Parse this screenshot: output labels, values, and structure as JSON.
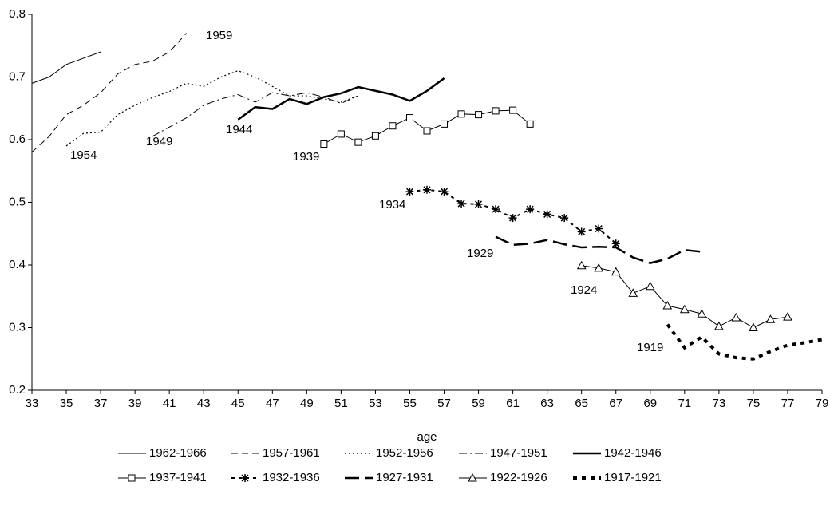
{
  "chart_data": {
    "type": "line",
    "xlabel": "age",
    "xlim": [
      33,
      79
    ],
    "xticks": [
      33,
      35,
      37,
      39,
      41,
      43,
      45,
      47,
      49,
      51,
      53,
      55,
      57,
      59,
      61,
      63,
      65,
      67,
      69,
      71,
      73,
      75,
      77,
      79
    ],
    "ylim": [
      0.2,
      0.8
    ],
    "yticks": [
      0.2,
      0.3,
      0.4,
      0.5,
      0.6,
      0.7,
      0.8
    ],
    "grid": false,
    "legend": "bottom",
    "series": [
      {
        "name": "1962-1966",
        "color": "#000000",
        "x": [
          33,
          34,
          35,
          36,
          37
        ],
        "values": [
          0.69,
          0.7,
          0.72,
          0.73,
          0.74
        ]
      },
      {
        "name": "1957-1961",
        "color": "#000000",
        "label": "1959",
        "x": [
          33,
          34,
          35,
          36,
          37,
          38,
          39,
          40,
          41,
          42
        ],
        "values": [
          0.58,
          0.605,
          0.64,
          0.655,
          0.675,
          0.705,
          0.72,
          0.725,
          0.74,
          0.77
        ]
      },
      {
        "name": "1952-1956",
        "color": "#000000",
        "label": "1954",
        "x": [
          35,
          36,
          37,
          38,
          39,
          40,
          41,
          42,
          43,
          44,
          45,
          46,
          47,
          48,
          49,
          50,
          51,
          52
        ],
        "values": [
          0.59,
          0.61,
          0.612,
          0.64,
          0.655,
          0.667,
          0.677,
          0.69,
          0.685,
          0.7,
          0.71,
          0.7,
          0.685,
          0.67,
          0.67,
          0.665,
          0.66,
          0.67
        ]
      },
      {
        "name": "1947-1951",
        "color": "#000000",
        "label": "1949",
        "x": [
          40,
          41,
          42,
          43,
          44,
          45,
          46,
          47,
          48,
          49,
          50,
          51,
          52
        ],
        "values": [
          0.605,
          0.62,
          0.635,
          0.655,
          0.665,
          0.672,
          0.66,
          0.675,
          0.67,
          0.675,
          0.668,
          0.658,
          0.67
        ]
      },
      {
        "name": "1942-1946",
        "color": "#000000",
        "label": "1944",
        "x": [
          45,
          46,
          47,
          48,
          49,
          50,
          51,
          52,
          53,
          54,
          55,
          56,
          57
        ],
        "values": [
          0.632,
          0.652,
          0.649,
          0.665,
          0.657,
          0.668,
          0.674,
          0.684,
          0.678,
          0.672,
          0.662,
          0.678,
          0.698
        ]
      },
      {
        "name": "1937-1941",
        "color": "#000000",
        "label": "1939",
        "x": [
          50,
          51,
          52,
          53,
          54,
          55,
          56,
          57,
          58,
          59,
          60,
          61,
          62
        ],
        "values": [
          0.593,
          0.609,
          0.596,
          0.606,
          0.622,
          0.635,
          0.614,
          0.625,
          0.641,
          0.64,
          0.646,
          0.647,
          0.625
        ]
      },
      {
        "name": "1932-1936",
        "color": "#000000",
        "label": "1934",
        "x": [
          55,
          56,
          57,
          58,
          59,
          60,
          61,
          62,
          63,
          64,
          65,
          66,
          67
        ],
        "values": [
          0.517,
          0.52,
          0.517,
          0.498,
          0.497,
          0.489,
          0.475,
          0.489,
          0.481,
          0.475,
          0.453,
          0.458,
          0.434
        ]
      },
      {
        "name": "1927-1931",
        "color": "#000000",
        "label": "1929",
        "x": [
          60,
          61,
          62,
          63,
          64,
          65,
          66,
          67,
          68,
          69,
          70,
          71,
          72
        ],
        "values": [
          0.445,
          0.432,
          0.434,
          0.44,
          0.433,
          0.428,
          0.429,
          0.428,
          0.412,
          0.403,
          0.41,
          0.424,
          0.421
        ]
      },
      {
        "name": "1922-1926",
        "color": "#000000",
        "label": "1924",
        "x": [
          65,
          66,
          67,
          68,
          69,
          70,
          71,
          72,
          73,
          74,
          75,
          76,
          77
        ],
        "values": [
          0.399,
          0.395,
          0.389,
          0.355,
          0.366,
          0.335,
          0.329,
          0.322,
          0.302,
          0.316,
          0.3,
          0.313,
          0.317
        ]
      },
      {
        "name": "1917-1921",
        "color": "#000000",
        "label": "1919",
        "x": [
          70,
          71,
          72,
          73,
          74,
          75,
          76,
          77,
          78,
          79
        ],
        "values": [
          0.305,
          0.268,
          0.285,
          0.258,
          0.252,
          0.25,
          0.262,
          0.272,
          0.276,
          0.281
        ]
      }
    ]
  }
}
